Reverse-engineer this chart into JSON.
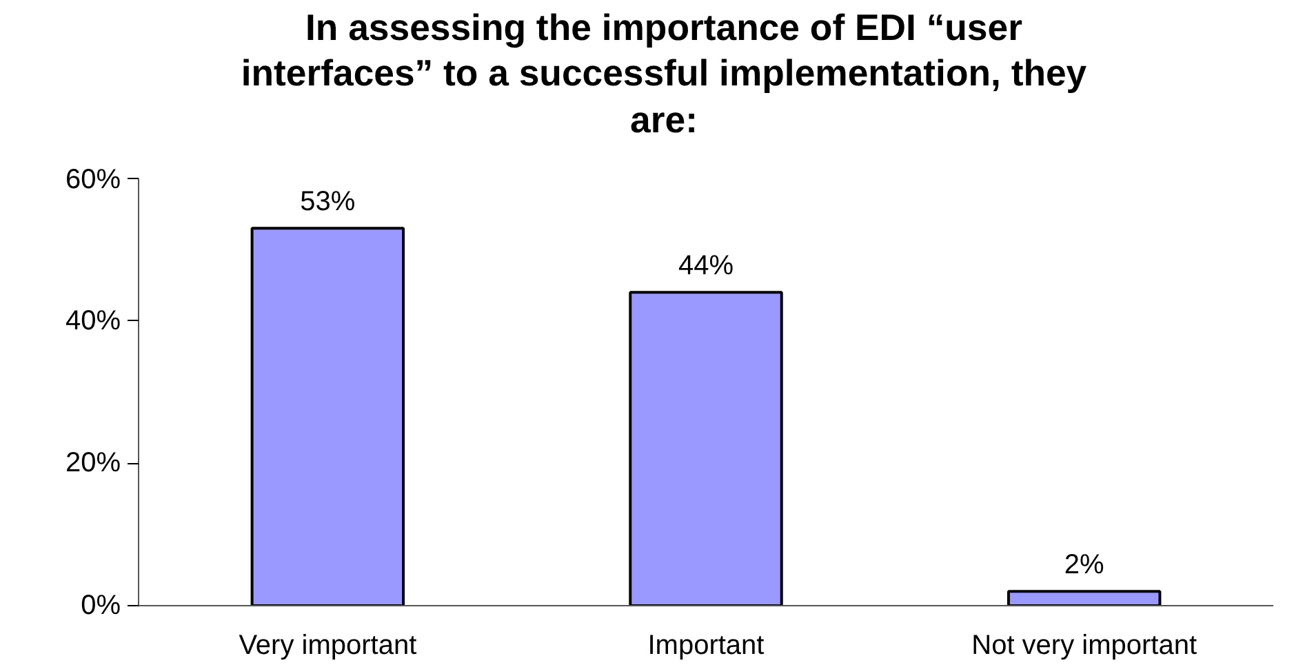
{
  "chart_data": {
    "type": "bar",
    "title": "In assessing the importance of EDI “user interfaces” to a successful implementation, they are:",
    "categories": [
      "Very important",
      "Important",
      "Not very important"
    ],
    "values": [
      53,
      44,
      2
    ],
    "value_labels": [
      "53%",
      "44%",
      "2%"
    ],
    "color": "#9999ff",
    "ylim": [
      0,
      60
    ],
    "yticks": [
      {
        "value": 0,
        "label": "0%"
      },
      {
        "value": 20,
        "label": "20%"
      },
      {
        "value": 40,
        "label": "40%"
      },
      {
        "value": 60,
        "label": "60%"
      }
    ],
    "grid": false
  }
}
